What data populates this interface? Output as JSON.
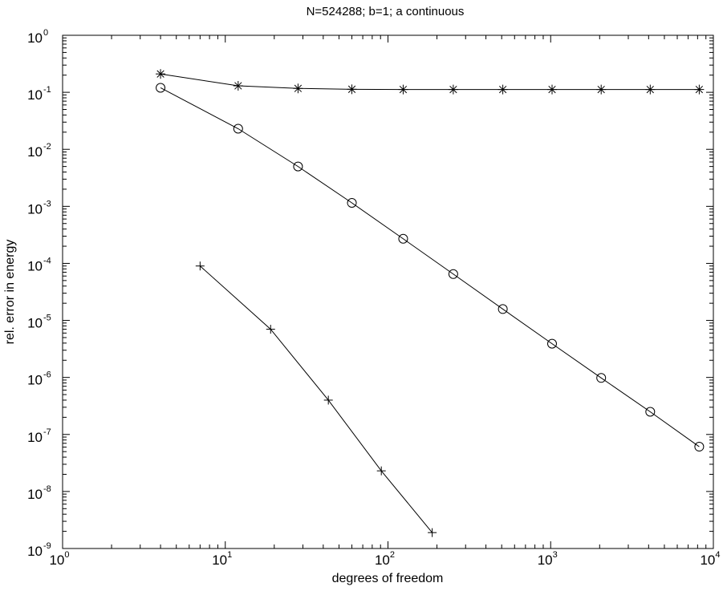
{
  "chart_data": {
    "type": "line",
    "title": "N=524288; b=1; a continuous",
    "xlabel": "degrees of freedom",
    "ylabel": "rel. error in energy",
    "xscale": "log",
    "yscale": "log",
    "xlim": [
      1,
      10000
    ],
    "ylim": [
      1e-09,
      1
    ],
    "grid": false,
    "legend": "none",
    "xticks": [
      {
        "base": "10",
        "exp": "0",
        "value": 1
      },
      {
        "base": "10",
        "exp": "1",
        "value": 10
      },
      {
        "base": "10",
        "exp": "2",
        "value": 100
      },
      {
        "base": "10",
        "exp": "3",
        "value": 1000
      },
      {
        "base": "10",
        "exp": "4",
        "value": 10000
      }
    ],
    "yticks": [
      {
        "base": "10",
        "exp": "0",
        "value": 1
      },
      {
        "base": "10",
        "exp": "-1",
        "value": 0.1
      },
      {
        "base": "10",
        "exp": "-2",
        "value": 0.01
      },
      {
        "base": "10",
        "exp": "-3",
        "value": 0.001
      },
      {
        "base": "10",
        "exp": "-4",
        "value": 0.0001
      },
      {
        "base": "10",
        "exp": "-5",
        "value": 1e-05
      },
      {
        "base": "10",
        "exp": "-6",
        "value": 1e-06
      },
      {
        "base": "10",
        "exp": "-7",
        "value": 1e-07
      },
      {
        "base": "10",
        "exp": "-8",
        "value": 1e-08
      },
      {
        "base": "10",
        "exp": "-9",
        "value": 1e-09
      }
    ],
    "series": [
      {
        "marker": "asterisk",
        "x": [
          4,
          12,
          28,
          60,
          124,
          252,
          508,
          1020,
          2044,
          4092,
          8188
        ],
        "y": [
          0.21,
          0.13,
          0.117,
          0.113,
          0.112,
          0.112,
          0.112,
          0.112,
          0.112,
          0.112,
          0.112
        ]
      },
      {
        "marker": "circle",
        "x": [
          4,
          12,
          28,
          60,
          124,
          252,
          508,
          1020,
          2044,
          4092,
          8188
        ],
        "y": [
          0.12,
          0.023,
          0.005,
          0.00115,
          0.00027,
          6.5e-05,
          1.58e-05,
          3.9e-06,
          9.8e-07,
          2.5e-07,
          6.1e-08
        ]
      },
      {
        "marker": "plus",
        "x": [
          7,
          19,
          43,
          91,
          187
        ],
        "y": [
          9e-05,
          7e-06,
          4e-07,
          2.3e-08,
          1.9e-09
        ]
      }
    ],
    "colors": {
      "line": "#000000",
      "axes": "#000000",
      "background": "#ffffff"
    }
  }
}
